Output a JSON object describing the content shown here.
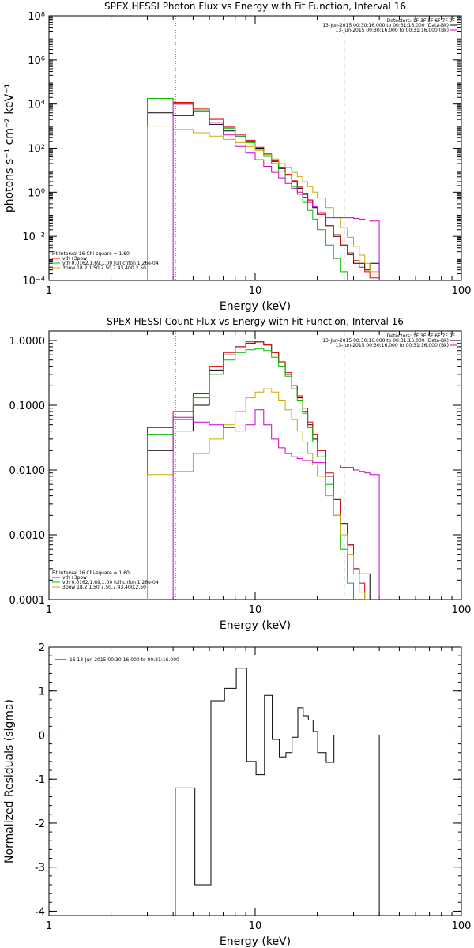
{
  "chart_data": [
    {
      "type": "line",
      "title": "SPEX HESSI Photon Flux vs Energy with Fit Function, Interval 16",
      "xlabel": "Energy (keV)",
      "ylabel": "photons s⁻¹ cm⁻² keV⁻¹",
      "x_scale": "log",
      "y_scale": "log",
      "xlim": [
        1,
        100
      ],
      "ylim": [
        0.0001,
        100000000
      ],
      "x_ticks": [
        {
          "v": 1,
          "label": "1"
        },
        {
          "v": 10,
          "label": "10"
        },
        {
          "v": 100,
          "label": "100"
        }
      ],
      "y_ticks": [
        {
          "v": 0.0001,
          "label": "10⁻⁴"
        },
        {
          "v": 0.01,
          "label": "10⁻²"
        },
        {
          "v": 1,
          "label": "10⁰"
        },
        {
          "v": 100,
          "label": "10²"
        },
        {
          "v": 10000,
          "label": "10⁴"
        },
        {
          "v": 1000000,
          "label": "10⁶"
        },
        {
          "v": 100000000,
          "label": "10⁸"
        }
      ],
      "vlines": [
        {
          "x": 4.1,
          "style": "dotted"
        },
        {
          "x": 27,
          "style": "dashed"
        }
      ],
      "legend_top_right": [
        {
          "text": "Detectors: 1F 3F 5F 6F 7F 9F",
          "color": ""
        },
        {
          "text": "13-Jun-2015 00:30:16.000 to 00:31:16.000 (Data-Bk)",
          "color": "#000000"
        },
        {
          "text": "13-Jun-2015 00:30:16.000 to 00:31:16.000 (Bk)",
          "color": "#cc00cc"
        }
      ],
      "legend_bottom_left": [
        {
          "text": "Fit Interval 16    Chi-square = 1.60",
          "color": ""
        },
        {
          "text": "vth+3pow",
          "color": "#dd0000"
        },
        {
          "text": "vth 0.0162,1.69,1.00   full chfon 1.26e-04",
          "color": "#00bb00"
        },
        {
          "text": "3pow 18.2,1.50,7.50,7.43,400,2.50",
          "color": "#ccaa00"
        }
      ],
      "edges": [
        3,
        4,
        5,
        6,
        7,
        8,
        9,
        10,
        11,
        12,
        13,
        14,
        15,
        16,
        17,
        18,
        19,
        20,
        22,
        24,
        26,
        28,
        30,
        32,
        34,
        36,
        40,
        45,
        50,
        56
      ],
      "series": [
        {
          "name": "",
          "color": "#000000",
          "values": [
            4000,
            3000,
            5000,
            1200,
            600,
            350,
            200,
            100,
            50,
            25,
            12,
            6,
            3,
            1.5,
            0.8,
            0.4,
            0.2,
            0.1,
            0.03,
            0.01,
            0.004,
            0.0015,
            0.0006,
            0.0006,
            0.0003,
            0.0006,
            null,
            null,
            null
          ]
        },
        {
          "name": "vth+3pow",
          "color": "#dd0000",
          "values": [
            18000,
            12000,
            6000,
            2200,
            900,
            420,
            230,
            110,
            55,
            27,
            13,
            6.5,
            3.3,
            1.7,
            0.9,
            0.45,
            0.22,
            0.1,
            0.03,
            0.012,
            0.004,
            0.0018,
            0.0008,
            0.0004,
            0.00025,
            0.00013,
            null,
            null,
            null
          ]
        },
        {
          "name": "vth 0.0162,1.69,1.00",
          "color": "#00bb00",
          "values": [
            18000,
            10000,
            5000,
            2000,
            800,
            360,
            180,
            90,
            42,
            20,
            9,
            4,
            1.8,
            0.8,
            0.35,
            0.15,
            0.06,
            0.02,
            0.004,
            0.001,
            0.00025,
            0.0001,
            null,
            null,
            null,
            null,
            null,
            null,
            null
          ]
        },
        {
          "name": "3pow 18.2,1.50,7.50,7.43,400,2.50",
          "color": "#ccaa00",
          "values": [
            1000,
            700,
            500,
            350,
            250,
            180,
            120,
            80,
            50,
            32,
            20,
            13,
            8,
            5,
            3,
            1.8,
            1,
            0.55,
            0.2,
            0.07,
            0.025,
            0.009,
            0.0035,
            0.0014,
            0.0006,
            0.00025,
            0.0001,
            null,
            null
          ]
        },
        {
          "name": "",
          "color": "#cc00cc",
          "values": [
            null,
            10000,
            4500,
            1500,
            400,
            120,
            60,
            30,
            15,
            8,
            4.5,
            2.5,
            1.5,
            1,
            0.6,
            0.35,
            0.22,
            0.12,
            0.07,
            0.07,
            0.07,
            0.07,
            0.065,
            0.06,
            0.055,
            0.05,
            null,
            null,
            null
          ]
        }
      ]
    },
    {
      "type": "line",
      "title": "SPEX HESSI Count Flux vs Energy with Fit Function, Interval 16",
      "xlabel": "Energy (keV)",
      "ylabel": "",
      "x_scale": "log",
      "y_scale": "log",
      "xlim": [
        1,
        100
      ],
      "ylim": [
        0.0001,
        1.4
      ],
      "x_ticks": [
        {
          "v": 1,
          "label": "1"
        },
        {
          "v": 10,
          "label": "10"
        },
        {
          "v": 100,
          "label": "100"
        }
      ],
      "y_ticks": [
        {
          "v": 0.0001,
          "label": "0.0001"
        },
        {
          "v": 0.001,
          "label": "0.0010"
        },
        {
          "v": 0.01,
          "label": "0.0100"
        },
        {
          "v": 0.1,
          "label": "0.1000"
        },
        {
          "v": 1,
          "label": "1.0000"
        }
      ],
      "vlines": [
        {
          "x": 4.1,
          "style": "dotted"
        },
        {
          "x": 27,
          "style": "dashed"
        }
      ],
      "legend_top_right": [
        {
          "text": "Detectors: 1F 3F 5F 6F 7F 9F",
          "color": ""
        },
        {
          "text": "13-Jun-2015 00:30:16.000 to 00:31:16.000 (Data-Bk)",
          "color": "#000000"
        },
        {
          "text": "13-Jun-2015 00:30:16.000 to 00:31:16.000 (Bk)",
          "color": "#cc00cc"
        }
      ],
      "legend_bottom_left": [
        {
          "text": "Fit Interval 16    Chi-square = 1.60",
          "color": ""
        },
        {
          "text": "vth+3pow",
          "color": "#dd0000"
        },
        {
          "text": "vth 0.0162,1.69,1.00   full chfon 1.26e-04",
          "color": "#00bb00"
        },
        {
          "text": "3pow 18.2,1.50,7.50,7.43,400,2.50",
          "color": "#ccaa00"
        }
      ],
      "edges": [
        3,
        4,
        5,
        6,
        7,
        8,
        9,
        10,
        11,
        12,
        13,
        14,
        15,
        16,
        17,
        18,
        19,
        20,
        22,
        24,
        26,
        28,
        30,
        32,
        34,
        36,
        40,
        45,
        50,
        56
      ],
      "series": [
        {
          "name": "",
          "color": "#000000",
          "values": [
            0.02,
            0.04,
            0.1,
            0.35,
            0.6,
            0.8,
            0.9,
            0.95,
            0.85,
            0.65,
            0.45,
            0.3,
            0.2,
            0.13,
            0.08,
            0.05,
            0.03,
            0.02,
            0.008,
            0.0035,
            0.0015,
            0.0007,
            0.0003,
            0.00025,
            0.00025,
            null,
            null,
            null,
            null
          ]
        },
        {
          "name": "vth+3pow",
          "color": "#dd0000",
          "values": [
            0.045,
            0.08,
            0.15,
            0.4,
            0.65,
            0.8,
            0.95,
            0.95,
            0.85,
            0.65,
            0.47,
            0.32,
            0.2,
            0.14,
            0.09,
            0.055,
            0.035,
            0.02,
            0.009,
            0.0035,
            0.0015,
            0.0007,
            0.0003,
            0.00018,
            0.0001,
            null,
            null,
            null,
            null
          ]
        },
        {
          "name": "vth 0.0162,1.69,1.00",
          "color": "#00bb00",
          "values": [
            0.035,
            0.06,
            0.13,
            0.3,
            0.5,
            0.65,
            0.72,
            0.75,
            0.7,
            0.55,
            0.4,
            0.28,
            0.18,
            0.12,
            0.075,
            0.045,
            0.027,
            0.016,
            0.006,
            0.002,
            0.0006,
            0.00018,
            null,
            null,
            null,
            null,
            null,
            null,
            null
          ]
        },
        {
          "name": "3pow 18.2,1.50,7.50,7.43,400,2.50",
          "color": "#ccaa00",
          "values": [
            0.0085,
            0.0095,
            0.018,
            0.03,
            0.05,
            0.08,
            0.13,
            0.16,
            0.18,
            0.16,
            0.12,
            0.085,
            0.06,
            0.04,
            0.027,
            0.018,
            0.012,
            0.008,
            0.004,
            0.002,
            0.001,
            0.0005,
            0.00025,
            0.00013,
            null,
            null,
            null,
            null,
            null
          ]
        },
        {
          "name": "",
          "color": "#cc00cc",
          "values": [
            null,
            0.065,
            0.055,
            0.05,
            0.045,
            0.04,
            0.05,
            0.085,
            0.05,
            0.03,
            0.022,
            0.018,
            0.016,
            0.015,
            0.014,
            0.014,
            0.013,
            0.013,
            0.012,
            0.012,
            0.011,
            0.011,
            0.01,
            0.0095,
            0.009,
            0.0085,
            null,
            null,
            null
          ]
        }
      ]
    },
    {
      "type": "line",
      "title": "",
      "xlabel": "Energy (keV)",
      "ylabel": "Normalized Residuals (sigma)",
      "x_scale": "log",
      "y_scale": "linear",
      "xlim": [
        1,
        100
      ],
      "ylim": [
        -4.1,
        2
      ],
      "x_ticks": [
        {
          "v": 1,
          "label": "1"
        },
        {
          "v": 10,
          "label": "10"
        },
        {
          "v": 100,
          "label": "100"
        }
      ],
      "y_ticks": [
        {
          "v": -4,
          "label": "-4"
        },
        {
          "v": -3,
          "label": "-3"
        },
        {
          "v": -2,
          "label": "-2"
        },
        {
          "v": -1,
          "label": "-1"
        },
        {
          "v": 0,
          "label": "0"
        },
        {
          "v": 1,
          "label": "1"
        },
        {
          "v": 2,
          "label": "2"
        }
      ],
      "legend_top_left": [
        {
          "text": "16  13-Jun-2015 00:30:16.000 to 00:31:16.000",
          "color": "#000000"
        }
      ],
      "edges": [
        4.1,
        5.1,
        6.1,
        7.1,
        8.1,
        9.1,
        10.1,
        11.1,
        12.1,
        13.1,
        14.1,
        15.1,
        16.1,
        17.1,
        18.1,
        19.1,
        20.1,
        22.1,
        24.1,
        26.1,
        28.1,
        40
      ],
      "series": [
        {
          "name": "",
          "color": "#000000",
          "values": [
            -1.2,
            -3.4,
            0.78,
            1.06,
            1.52,
            -0.6,
            -0.9,
            0.9,
            -0.1,
            -0.5,
            -0.4,
            -0.05,
            0.62,
            0.44,
            0.34,
            0.08,
            -0.4,
            -0.62,
            0.0,
            0.0,
            0.0
          ]
        }
      ]
    }
  ]
}
